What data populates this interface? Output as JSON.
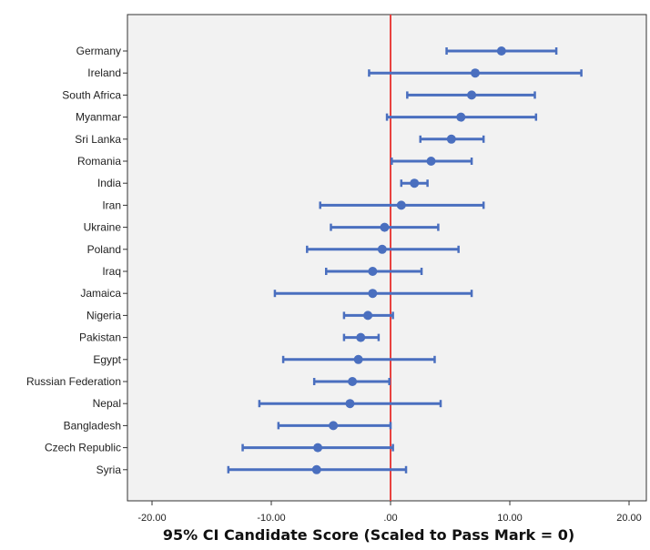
{
  "chart_data": {
    "type": "errorbar",
    "title": "",
    "xlabel": "95% CI Candidate Score (Scaled to Pass Mark = 0)",
    "ylabel": "",
    "xlim": [
      -22,
      22
    ],
    "xticks": [
      -20,
      -10,
      0,
      10,
      20
    ],
    "xtick_labels": [
      "-20.00",
      "-10.00",
      ".00",
      "10.00",
      "20.00"
    ],
    "reference_line": {
      "x": 0,
      "color": "#e8423f"
    },
    "grid": false,
    "colors": {
      "series": "#4a6fbf",
      "panel_bg": "#f2f2f2",
      "reference": "#e8423f"
    },
    "categories": [
      "Germany",
      "Ireland",
      "South Africa",
      "Myanmar",
      "Sri Lanka",
      "Romania",
      "India",
      "Iran",
      "Ukraine",
      "Poland",
      "Iraq",
      "Jamaica",
      "Nigeria",
      "Pakistan",
      "Egypt",
      "Russian Federation",
      "Nepal",
      "Bangladesh",
      "Czech Republic",
      "Syria"
    ],
    "mean": [
      9.3,
      7.1,
      6.8,
      5.9,
      5.1,
      3.4,
      2.0,
      0.9,
      -0.5,
      -0.7,
      -1.5,
      -1.5,
      -1.9,
      -2.5,
      -2.7,
      -3.2,
      -3.4,
      -4.8,
      -6.1,
      -6.2
    ],
    "lower": [
      4.7,
      -1.8,
      1.4,
      -0.3,
      2.5,
      0.1,
      0.9,
      -5.9,
      -5.0,
      -7.0,
      -5.4,
      -9.7,
      -3.9,
      -3.9,
      -9.0,
      -6.4,
      -11.0,
      -9.4,
      -12.4,
      -13.6
    ],
    "upper": [
      13.9,
      16.0,
      12.1,
      12.2,
      7.8,
      6.8,
      3.1,
      7.8,
      4.0,
      5.7,
      2.6,
      6.8,
      0.2,
      -1.0,
      3.7,
      -0.1,
      4.2,
      0.0,
      0.2,
      1.3
    ]
  }
}
